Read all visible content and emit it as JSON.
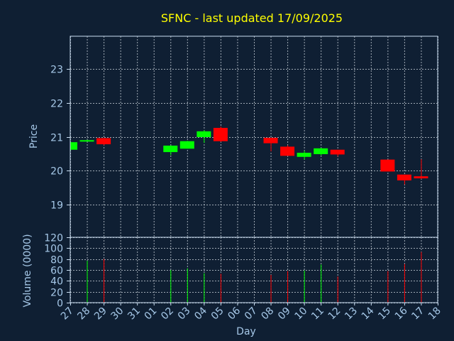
{
  "colors": {
    "background": "#0f1f33",
    "title": "#ffff00",
    "axis_text": "#a6c8e8",
    "axis_line": "#c8dcf0",
    "grid": "#d0d8e0",
    "up": "#00ff00",
    "down": "#ff0000"
  },
  "chart_data": {
    "type": "candlestick",
    "title": "SFNC - last updated 17/09/2025",
    "xlabel": "Day",
    "ylabel_price": "Price",
    "ylabel_volume": "Volume (0000)",
    "x_ticks": [
      "27",
      "28",
      "29",
      "30",
      "31",
      "01",
      "02",
      "03",
      "04",
      "05",
      "06",
      "07",
      "08",
      "09",
      "10",
      "11",
      "12",
      "13",
      "14",
      "15",
      "16",
      "17",
      "18"
    ],
    "price_ylim": [
      18.05,
      23.95
    ],
    "price_ticks": [
      "19",
      "20",
      "21",
      "22",
      "23"
    ],
    "volume_ylim": [
      0,
      120
    ],
    "volume_ticks": [
      "0",
      "20",
      "40",
      "60",
      "80",
      "100",
      "120"
    ],
    "grid": true,
    "candles": [
      {
        "day": "27",
        "open": 20.62,
        "high": 20.85,
        "low": 20.6,
        "close": 20.84,
        "volume": 0
      },
      {
        "day": "28",
        "open": 20.87,
        "high": 20.91,
        "low": 20.87,
        "close": 20.9,
        "volume": 77
      },
      {
        "day": "29",
        "open": 20.96,
        "high": 20.97,
        "low": 20.75,
        "close": 20.78,
        "volume": 80
      },
      {
        "day": "02",
        "open": 20.55,
        "high": 20.75,
        "low": 20.46,
        "close": 20.74,
        "volume": 60
      },
      {
        "day": "03",
        "open": 20.65,
        "high": 20.88,
        "low": 20.65,
        "close": 20.87,
        "volume": 63
      },
      {
        "day": "04",
        "open": 20.99,
        "high": 21.19,
        "low": 20.82,
        "close": 21.16,
        "volume": 54
      },
      {
        "day": "05",
        "open": 21.26,
        "high": 21.3,
        "low": 20.85,
        "close": 20.87,
        "volume": 53
      },
      {
        "day": "08",
        "open": 20.97,
        "high": 20.97,
        "low": 20.57,
        "close": 20.81,
        "volume": 51
      },
      {
        "day": "09",
        "open": 20.71,
        "high": 20.75,
        "low": 20.44,
        "close": 20.44,
        "volume": 58
      },
      {
        "day": "10",
        "open": 20.41,
        "high": 20.59,
        "low": 20.33,
        "close": 20.53,
        "volume": 59
      },
      {
        "day": "11",
        "open": 20.49,
        "high": 20.68,
        "low": 20.45,
        "close": 20.66,
        "volume": 70
      },
      {
        "day": "12",
        "open": 20.62,
        "high": 20.62,
        "low": 20.42,
        "close": 20.48,
        "volume": 48
      },
      {
        "day": "15",
        "open": 20.33,
        "high": 20.33,
        "low": 19.98,
        "close": 19.98,
        "volume": 58
      },
      {
        "day": "16",
        "open": 19.89,
        "high": 19.89,
        "low": 19.6,
        "close": 19.72,
        "volume": 71
      },
      {
        "day": "17",
        "open": 19.84,
        "high": 20.34,
        "low": 19.76,
        "close": 19.78,
        "volume": 93
      }
    ]
  }
}
